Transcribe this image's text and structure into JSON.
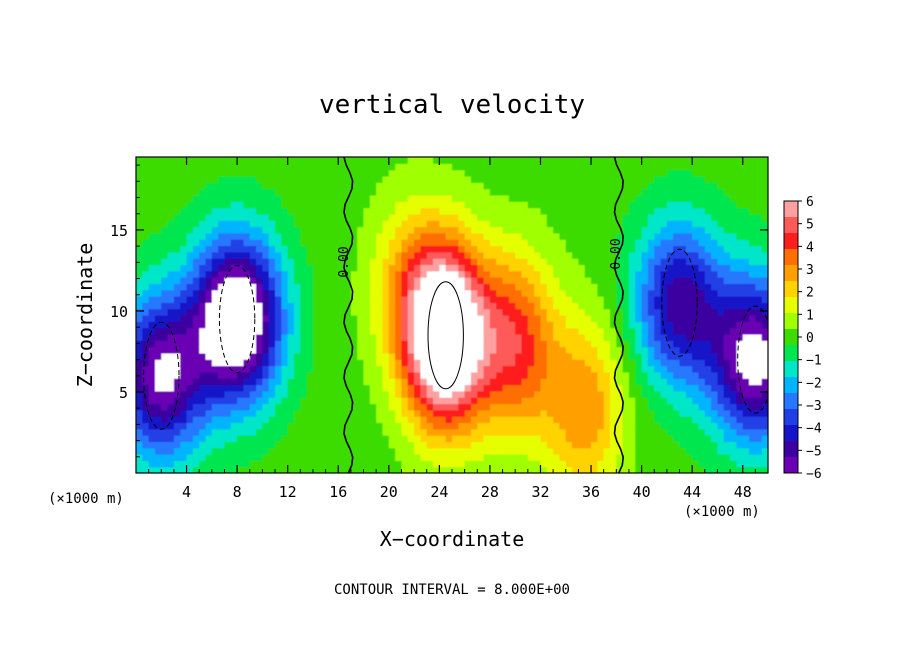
{
  "chart_data": {
    "type": "heatmap",
    "title": "vertical velocity",
    "xlabel": "X−coordinate",
    "ylabel": "Z−coordinate",
    "x_unit_left": "(×1000 m)",
    "x_unit_right": "(×1000 m)",
    "xlim": [
      0,
      50
    ],
    "ylim": [
      0,
      19.5
    ],
    "x_ticks": [
      4,
      8,
      12,
      16,
      20,
      24,
      28,
      32,
      36,
      40,
      44,
      48
    ],
    "y_ticks": [
      5,
      10,
      15
    ],
    "zero_contour_label": "0.00",
    "footer": "CONTOUR INTERVAL = 8.000E+00",
    "colorbar": {
      "min": -6,
      "max": 6,
      "labels": [
        "6",
        "5",
        "4",
        "3",
        "2",
        "1",
        "0",
        "−1",
        "−2",
        "−3",
        "−4",
        "−5",
        "−6"
      ],
      "colors": [
        "#ffa0a0",
        "#ff5a5a",
        "#ff1e1e",
        "#ff6e00",
        "#ffa000",
        "#ffd200",
        "#e6ff00",
        "#a0ff00",
        "#3cdc00",
        "#00e650",
        "#00e6c8",
        "#00b4ff",
        "#2878ff",
        "#2040e6",
        "#1414c8",
        "#3c00a0",
        "#6a00b4"
      ]
    },
    "features": [
      {
        "sign": "up",
        "x": 24.5,
        "z": 8.5,
        "strength": 9.0
      },
      {
        "sign": "up",
        "x": 30,
        "z": 8.0,
        "strength": 4.2
      },
      {
        "sign": "up",
        "x": 35.5,
        "z": 4.0,
        "strength": 3.0
      },
      {
        "sign": "up",
        "x": 21.5,
        "z": 11.5,
        "strength": 2.0
      },
      {
        "sign": "down",
        "x": 8,
        "z": 9.5,
        "strength": 8.0
      },
      {
        "sign": "down",
        "x": 2,
        "z": 6.0,
        "strength": 6.0
      },
      {
        "sign": "down",
        "x": 43,
        "z": 10.5,
        "strength": 5.0
      },
      {
        "sign": "down",
        "x": 49,
        "z": 7.0,
        "strength": 6.5
      }
    ]
  }
}
